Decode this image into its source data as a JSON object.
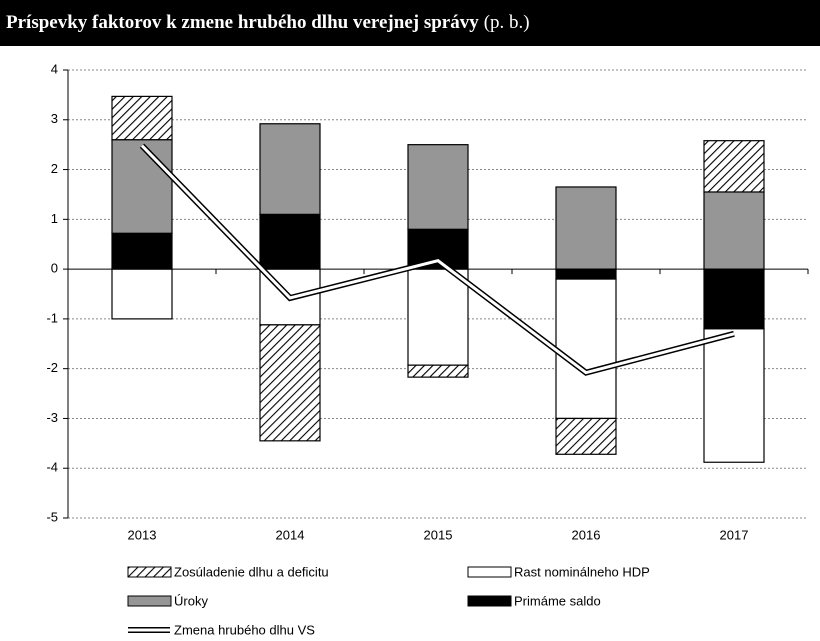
{
  "chart_data": {
    "type": "bar",
    "stacked": true,
    "title": "Príspevky faktorov k zmene hrubého dlhu verejnej správy",
    "subtitle": "(p. b.)",
    "categories": [
      "2013",
      "2014",
      "2015",
      "2016",
      "2017"
    ],
    "series": [
      {
        "name": "Zosúladenie dlhu a deficitu",
        "color": "#000000",
        "pattern": "hatch",
        "values": [
          0.87,
          -2.33,
          -0.24,
          -0.72,
          1.03
        ]
      },
      {
        "name": "Rast nominálneho HDP",
        "color": "#ffffff",
        "values": [
          -1.0,
          -1.12,
          -1.93,
          -2.8,
          -2.68
        ]
      },
      {
        "name": "Úroky",
        "color": "#969696",
        "values": [
          1.88,
          1.82,
          1.7,
          1.65,
          1.55
        ]
      },
      {
        "name": "Primáme saldo",
        "color": "#000000",
        "values": [
          0.72,
          1.1,
          0.8,
          -0.2,
          -1.2
        ]
      },
      {
        "name": "Zmena hrubého dlhu VS",
        "type": "line",
        "color": "#ffffff",
        "values": [
          2.48,
          -0.58,
          0.17,
          -2.08,
          -1.3
        ]
      }
    ],
    "ylim": [
      -5,
      4
    ],
    "yticks": [
      -5,
      -4,
      -3,
      -2,
      -1,
      0,
      1,
      2,
      3,
      4
    ],
    "grid": true
  }
}
